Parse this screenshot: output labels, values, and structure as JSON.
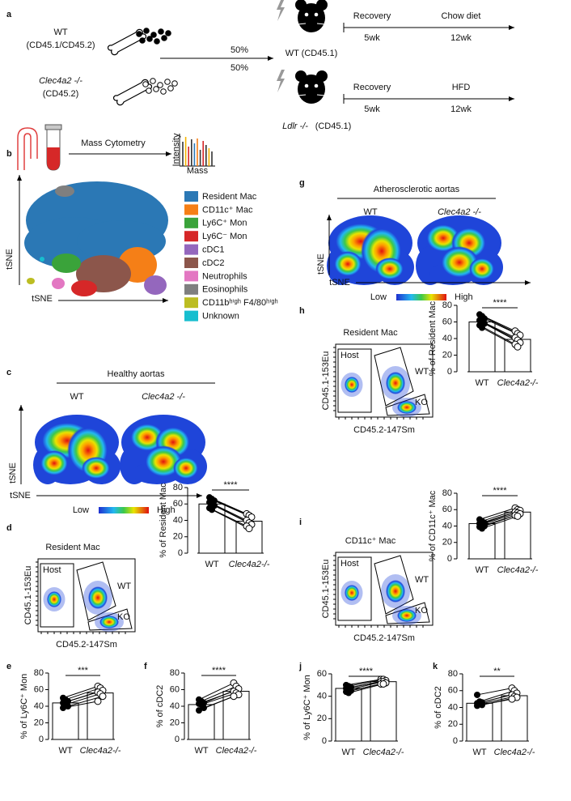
{
  "panels": {
    "a": {
      "letter": "a",
      "donor_wt": "WT",
      "donor_wt_sub": "(CD45.1/CD45.2)",
      "donor_ko": "Clec4a2 -/-",
      "donor_ko_sub": "(CD45.2)",
      "ratio_top": "50%",
      "ratio_bottom": "50%",
      "recipient_top": "WT (CD45.1)",
      "recipient_bottom_gene": "Ldlr -/-",
      "recipient_bottom_note": "(CD45.1)",
      "top_steps": [
        {
          "label": "Recovery",
          "time": "5wk"
        },
        {
          "label": "Chow diet",
          "time": "12wk"
        }
      ],
      "bottom_steps": [
        {
          "label": "Recovery",
          "time": "5wk"
        },
        {
          "label": "HFD",
          "time": "12wk"
        }
      ]
    },
    "b": {
      "letter": "b",
      "method": "Mass Cytometry",
      "spectrum_y": "Intensity",
      "spectrum_x": "Mass",
      "axis_x": "tSNE",
      "axis_y": "tSNE",
      "legend": [
        {
          "name": "Resident Mac",
          "color": "#2b78b5"
        },
        {
          "name": "CD11c⁺ Mac",
          "color": "#f57f17"
        },
        {
          "name": "Ly6C⁺ Mon",
          "color": "#3aa33a"
        },
        {
          "name": "Ly6C⁻ Mon",
          "color": "#d62728"
        },
        {
          "name": "cDC1",
          "color": "#9467bd"
        },
        {
          "name": "cDC2",
          "color": "#8c564b"
        },
        {
          "name": "Neutrophils",
          "color": "#e377c2"
        },
        {
          "name": "Eosinophils",
          "color": "#7f7f7f"
        },
        {
          "name": "CD11bʰⁱᵍʰ F4/80ʰⁱᵍʰ",
          "color": "#bcbd22"
        },
        {
          "name": "Unknown",
          "color": "#17becf"
        }
      ]
    },
    "c": {
      "letter": "c",
      "title": "Healthy aortas",
      "groups": [
        "WT",
        "Clec4a2 -/-"
      ],
      "axis_x": "tSNE",
      "axis_y": "tSNE",
      "scale_low": "Low",
      "scale_high": "High"
    },
    "g": {
      "letter": "g",
      "title": "Atherosclerotic aortas",
      "groups": [
        "WT",
        "Clec4a2 -/-"
      ],
      "axis_x": "tSNE",
      "axis_y": "tSNE",
      "scale_low": "Low",
      "scale_high": "High"
    },
    "d": {
      "letter": "d",
      "flow": {
        "title": "Resident Mac",
        "gates": [
          "Host",
          "WT",
          "KO"
        ],
        "ylabel": "CD45.1-153Eu",
        "xlabel": "CD45.2-147Sm"
      },
      "bars": {
        "ylabel": "% of Resident Mac",
        "categories": [
          "WT",
          "Clec4a2-/-"
        ],
        "ylim": [
          0,
          80
        ],
        "yticks": [
          0,
          20,
          40,
          60,
          80
        ],
        "values": [
          60,
          39
        ],
        "significance": "****",
        "wt_points": [
          68,
          66,
          64,
          62,
          60,
          58,
          55,
          53
        ],
        "ko_points": [
          48,
          46,
          44,
          40,
          37,
          35,
          33,
          30
        ]
      }
    },
    "h": {
      "letter": "h",
      "flow": {
        "title": "Resident Mac",
        "gates": [
          "Host",
          "WT",
          "KO"
        ],
        "ylabel": "CD45.1-153Eu",
        "xlabel": "CD45.2-147Sm"
      },
      "bars": {
        "ylabel": "% of Resident Mac",
        "categories": [
          "WT",
          "Clec4a2-/-"
        ],
        "ylim": [
          0,
          80
        ],
        "yticks": [
          0,
          20,
          40,
          60,
          80
        ],
        "values": [
          60,
          39
        ],
        "significance": "****",
        "wt_points": [
          69,
          67,
          64,
          62,
          60,
          58,
          56,
          53
        ],
        "ko_points": [
          49,
          46,
          44,
          41,
          38,
          35,
          33,
          30
        ]
      }
    },
    "i": {
      "letter": "i",
      "flow": {
        "title": "CD11c⁺ Mac",
        "gates": [
          "Host",
          "WT",
          "KO"
        ],
        "ylabel": "CD45.1-153Eu",
        "xlabel": "CD45.2-147Sm"
      },
      "bars": {
        "ylabel": "% of CD11c⁺ Mac",
        "categories": [
          "WT",
          "Clec4a2-/-"
        ],
        "ylim": [
          0,
          80
        ],
        "yticks": [
          0,
          20,
          40,
          60,
          80
        ],
        "values": [
          43,
          57
        ],
        "significance": "****",
        "wt_points": [
          48,
          46,
          44,
          43,
          42,
          40,
          39,
          37
        ],
        "ko_points": [
          62,
          60,
          59,
          57,
          56,
          55,
          53,
          52
        ]
      }
    },
    "e": {
      "letter": "e",
      "bars": {
        "ylabel": "% of Ly6C⁺ Mon",
        "categories": [
          "WT",
          "Clec4a2-/-"
        ],
        "ylim": [
          0,
          80
        ],
        "yticks": [
          0,
          20,
          40,
          60,
          80
        ],
        "values": [
          44,
          56
        ],
        "significance": "***",
        "wt_points": [
          50,
          48,
          46,
          44,
          42,
          40,
          38
        ],
        "ko_points": [
          64,
          62,
          59,
          57,
          55,
          52,
          46
        ]
      }
    },
    "f": {
      "letter": "f",
      "bars": {
        "ylabel": "% of cDC2",
        "categories": [
          "WT",
          "Clec4a2-/-"
        ],
        "ylim": [
          0,
          80
        ],
        "yticks": [
          0,
          20,
          40,
          60,
          80
        ],
        "values": [
          42,
          58
        ],
        "significance": "****",
        "wt_points": [
          48,
          46,
          44,
          43,
          42,
          38,
          35
        ],
        "ko_points": [
          68,
          64,
          61,
          58,
          56,
          54,
          52
        ]
      }
    },
    "j": {
      "letter": "j",
      "bars": {
        "ylabel": "% of Ly6C⁺ Mon",
        "categories": [
          "WT",
          "Clec4a2-/-"
        ],
        "ylim": [
          0,
          60
        ],
        "yticks": [
          0,
          20,
          40,
          60
        ],
        "values": [
          47,
          53
        ],
        "significance": "****",
        "wt_points": [
          50,
          49,
          48,
          47,
          46,
          45,
          44,
          43
        ],
        "ko_points": [
          55,
          55,
          54,
          53,
          53,
          52,
          51,
          51
        ]
      }
    },
    "k": {
      "letter": "k",
      "bars": {
        "ylabel": "% of cDC2",
        "categories": [
          "WT",
          "Clec4a2-/-"
        ],
        "ylim": [
          0,
          80
        ],
        "yticks": [
          0,
          20,
          40,
          60,
          80
        ],
        "values": [
          45,
          54
        ],
        "significance": "**",
        "wt_points": [
          55,
          47,
          46,
          45,
          44,
          43,
          42
        ],
        "ko_points": [
          63,
          60,
          57,
          55,
          53,
          52,
          50
        ]
      }
    }
  }
}
